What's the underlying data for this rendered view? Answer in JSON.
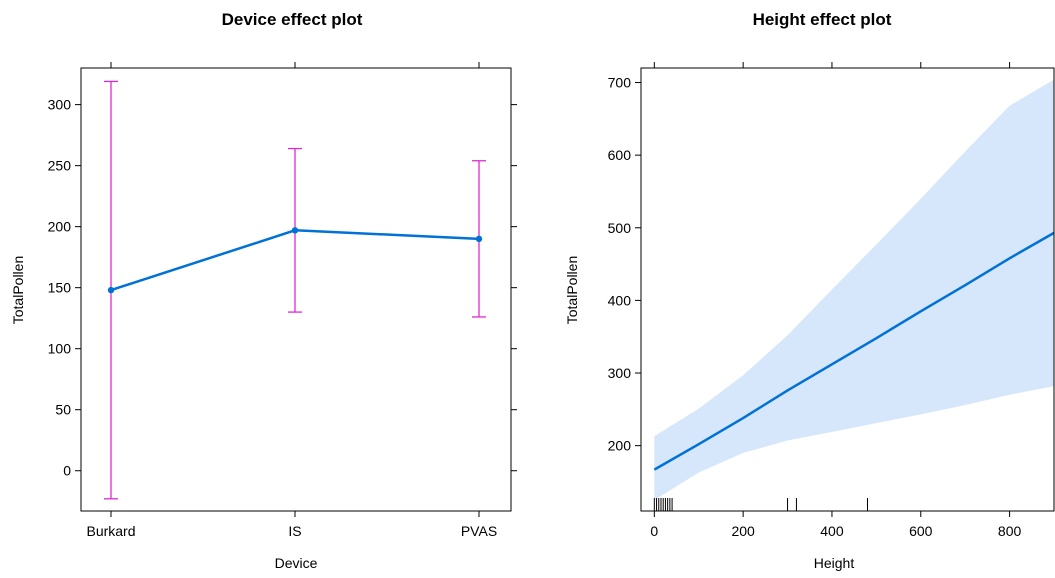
{
  "chart_data": [
    {
      "type": "line",
      "title": "Device effect plot",
      "xlabel": "Device",
      "ylabel": "TotalPollen",
      "categories": [
        "Burkard",
        "IS",
        "PVAS"
      ],
      "values": [
        148,
        197,
        190
      ],
      "lower": [
        -23,
        130,
        126
      ],
      "upper": [
        319,
        264,
        254
      ],
      "ylim": [
        -33,
        330
      ],
      "yticks": [
        0,
        50,
        100,
        150,
        200,
        250,
        300
      ],
      "line_color": "#0072d6",
      "errorbar_color": "#e028d2",
      "grid": false
    },
    {
      "type": "area",
      "title": "Height effect plot",
      "xlabel": "Height",
      "ylabel": "TotalPollen",
      "xlim": [
        -30,
        900
      ],
      "ylim": [
        110,
        720
      ],
      "xticks": [
        0,
        200,
        400,
        600,
        800
      ],
      "yticks": [
        200,
        300,
        400,
        500,
        600,
        700
      ],
      "fit": {
        "x": [
          0,
          100,
          200,
          300,
          400,
          500,
          600,
          700,
          800,
          900
        ],
        "y": [
          167,
          202,
          238,
          276,
          312,
          348,
          385,
          421,
          458,
          493
        ]
      },
      "band": {
        "x": [
          0,
          100,
          200,
          300,
          400,
          500,
          600,
          700,
          800,
          900
        ],
        "lower": [
          125,
          163,
          190,
          207,
          219,
          231,
          243,
          256,
          270,
          282
        ],
        "upper": [
          213,
          251,
          297,
          352,
          415,
          477,
          540,
          605,
          668,
          704
        ]
      },
      "rug_x": [
        0,
        5,
        10,
        15,
        20,
        25,
        30,
        35,
        40,
        300,
        320,
        480,
        900
      ],
      "line_color": "#0072d6",
      "band_color": "#d6e6fb",
      "grid": false
    }
  ]
}
